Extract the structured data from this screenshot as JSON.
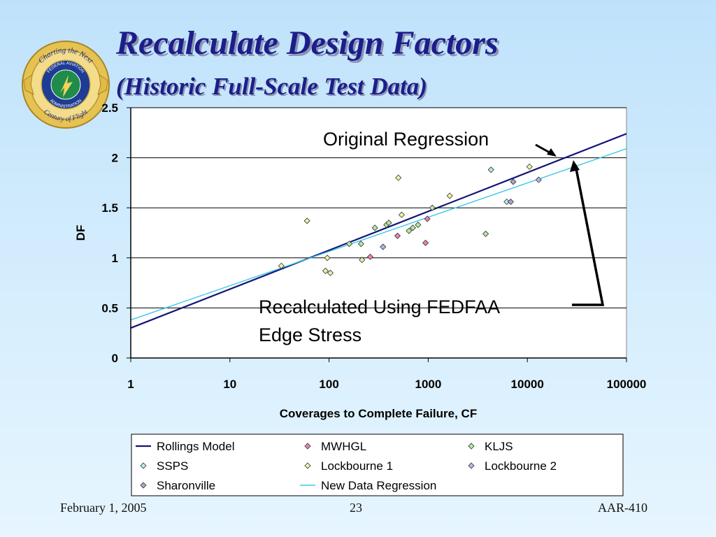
{
  "slide": {
    "title": "Recalculate Design Factors",
    "subtitle": "(Historic Full-Scale Test Data)",
    "logo": {
      "ring_top": "Charting the Next",
      "ring_bottom": "Century of Flight",
      "inner_top": "FEDERAL AVIATION",
      "inner_bottom": "ADMINISTRATION"
    },
    "footer": {
      "date": "February 1, 2005",
      "page": "23",
      "org": "AAR-410"
    }
  },
  "chart_data": {
    "type": "scatter",
    "xlabel": "Coverages to Complete Failure, CF",
    "ylabel": "DF",
    "x_scale": "log",
    "xlim": [
      1,
      100000
    ],
    "ylim": [
      0,
      2.5
    ],
    "x_ticks": [
      "1",
      "10",
      "100",
      "1000",
      "10000",
      "100000"
    ],
    "y_ticks": [
      "0",
      "0.5",
      "1",
      "1.5",
      "2",
      "2.5"
    ],
    "grid": "horizontal",
    "legend_position": "bottom",
    "annotations": {
      "original": "Original Regression",
      "recalc_line1": "Recalculated Using FEDFAA",
      "recalc_line2": "Edge Stress"
    },
    "lines": [
      {
        "name": "Rollings Model",
        "color": "#141478",
        "x": [
          1,
          100000
        ],
        "y": [
          0.3,
          2.24
        ]
      },
      {
        "name": "New Data Regression",
        "color": "#3cc8e6",
        "x": [
          1,
          100000
        ],
        "y": [
          0.38,
          2.09
        ]
      }
    ],
    "series": [
      {
        "name": "MWHGL",
        "color": "#ee7fb6",
        "points": [
          [
            260,
            1.01
          ],
          [
            490,
            1.22
          ],
          [
            940,
            1.15
          ],
          [
            980,
            1.39
          ]
        ]
      },
      {
        "name": "KLJS",
        "color": "#b6e8a0",
        "points": [
          [
            160,
            1.14
          ],
          [
            210,
            1.14
          ],
          [
            290,
            1.3
          ],
          [
            380,
            1.33
          ],
          [
            400,
            1.35
          ],
          [
            640,
            1.27
          ],
          [
            700,
            1.3
          ],
          [
            790,
            1.33
          ],
          [
            1100,
            1.5
          ],
          [
            3800,
            1.24
          ]
        ]
      },
      {
        "name": "SSPS",
        "color": "#b6ecec",
        "points": [
          [
            4300,
            1.88
          ],
          [
            6200,
            1.56
          ]
        ]
      },
      {
        "name": "Lockbourne 1",
        "color": "#f0f0a8",
        "points": [
          [
            33,
            0.92
          ],
          [
            60,
            1.37
          ],
          [
            92,
            0.87
          ],
          [
            96,
            1.0
          ],
          [
            103,
            0.85
          ],
          [
            215,
            0.98
          ],
          [
            500,
            1.8
          ],
          [
            540,
            1.43
          ],
          [
            1650,
            1.62
          ],
          [
            10500,
            1.91
          ]
        ]
      },
      {
        "name": "Lockbourne 2",
        "color": "#b4b4ee",
        "points": [
          [
            350,
            1.11
          ],
          [
            13000,
            1.78
          ]
        ]
      },
      {
        "name": "Sharonville",
        "color": "#b4a0d0",
        "points": [
          [
            6800,
            1.56
          ],
          [
            7200,
            1.76
          ]
        ]
      }
    ]
  }
}
